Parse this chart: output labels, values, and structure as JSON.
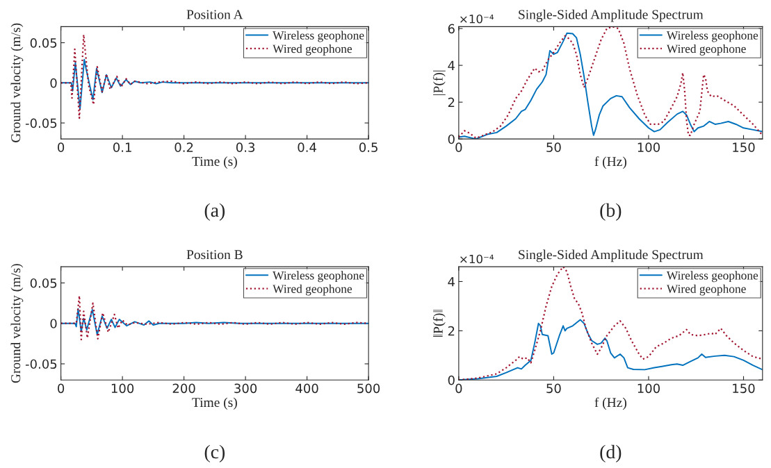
{
  "chart_data": [
    {
      "type": "line",
      "title": "Position A",
      "xlabel": "Time (s)",
      "ylabel": "Ground velocity (m/s)",
      "xlim": [
        0,
        0.5
      ],
      "xticks": [
        0,
        0.1,
        0.2,
        0.3,
        0.4,
        0.5
      ],
      "ylim": [
        -0.07,
        0.07
      ],
      "yticks": [
        -0.05,
        0,
        0.05
      ],
      "grid": false,
      "legend": "top right",
      "annotations": [
        "(a)"
      ],
      "series": [
        {
          "name": "Wireless geophone",
          "color": "#0072bd",
          "line_style": "solid",
          "x": [
            0,
            0.017,
            0.019,
            0.0235,
            0.031,
            0.038,
            0.041,
            0.052,
            0.058,
            0.067,
            0.074,
            0.082,
            0.09,
            0.097,
            0.106,
            0.113,
            0.12,
            0.13,
            0.145,
            0.155,
            0.165,
            0.18,
            0.2,
            0.25,
            0.3,
            0.35,
            0.4,
            0.45,
            0.5
          ],
          "values": [
            0,
            0,
            -0.01,
            0.025,
            -0.033,
            0.029,
            0.017,
            -0.021,
            0.018,
            -0.012,
            0.01,
            -0.006,
            0.006,
            -0.004,
            0.004,
            -0.002,
            0.002,
            0,
            0.001,
            -0.001,
            0.001,
            0,
            0,
            0,
            0,
            0,
            0,
            0,
            0
          ]
        },
        {
          "name": "Wired geophone",
          "color": "#a2142f",
          "line_style": "dotted",
          "x": [
            0,
            0.016,
            0.018,
            0.0225,
            0.03,
            0.037,
            0.045,
            0.053,
            0.059,
            0.067,
            0.074,
            0.08,
            0.091,
            0.098,
            0.106,
            0.113,
            0.12,
            0.14,
            0.16,
            0.18,
            0.2,
            0.22,
            0.24,
            0.26,
            0.28,
            0.3,
            0.32,
            0.34,
            0.36,
            0.38,
            0.4,
            0.42,
            0.44,
            0.46,
            0.48,
            0.5
          ],
          "values": [
            0,
            0,
            -0.019,
            0.042,
            -0.044,
            0.06,
            -0.003,
            -0.027,
            0.02,
            -0.011,
            0.011,
            -0.008,
            0.008,
            -0.005,
            0.005,
            -0.002,
            0.002,
            -0.001,
            0.001,
            0.002,
            -0.001,
            0.001,
            -0.001,
            0.001,
            -0.001,
            0.001,
            -0.001,
            0.001,
            -0.001,
            0.001,
            -0.001,
            0.001,
            -0.001,
            0.001,
            -0.001,
            0
          ]
        }
      ]
    },
    {
      "type": "line",
      "title": "Single-Sided Amplitude Spectrum",
      "xlabel": "f (Hz)",
      "ylabel": "|P(f)|",
      "xlim": [
        0,
        160
      ],
      "xticks": [
        0,
        50,
        100,
        150
      ],
      "ylim": [
        0,
        6.1
      ],
      "yticks": [
        0,
        2,
        4,
        6
      ],
      "grid": false,
      "legend": "top right",
      "annotations": [
        "×10⁻⁴",
        "(b)"
      ],
      "series": [
        {
          "name": "Wireless geophone",
          "color": "#0072bd",
          "line_style": "solid",
          "x": [
            0,
            3,
            9,
            15,
            20,
            25,
            30,
            33,
            35,
            38,
            41,
            44,
            46,
            48,
            50,
            52,
            55,
            57,
            60,
            62,
            64,
            66,
            68,
            70,
            71,
            72,
            74,
            76,
            80,
            83,
            86,
            90,
            95,
            100,
            103,
            106,
            110,
            115,
            118,
            120,
            122,
            124,
            126,
            129,
            132,
            135,
            138,
            142,
            146,
            150,
            155,
            160
          ],
          "values": [
            0.1,
            0.15,
            0.0,
            0.25,
            0.35,
            0.7,
            1.1,
            1.5,
            1.6,
            2.1,
            2.7,
            3.1,
            3.5,
            4.8,
            4.6,
            4.7,
            5.3,
            5.75,
            5.72,
            5.5,
            4.6,
            3.4,
            2.0,
            0.7,
            0.2,
            0.5,
            1.3,
            1.8,
            2.2,
            2.35,
            2.3,
            1.7,
            1.1,
            0.6,
            0.4,
            0.5,
            0.9,
            1.35,
            1.5,
            1.3,
            0.8,
            0.4,
            0.6,
            0.7,
            0.95,
            0.8,
            0.85,
            0.95,
            0.8,
            0.6,
            0.5,
            0.4
          ]
        },
        {
          "name": "Wired geophone",
          "color": "#a2142f",
          "line_style": "dotted",
          "x": [
            0,
            3,
            6,
            9,
            13,
            18,
            22,
            26,
            30,
            33,
            36,
            40,
            42,
            44,
            47,
            50,
            53,
            56,
            58,
            60,
            62,
            64,
            66,
            68,
            72,
            75,
            78,
            81,
            84,
            87,
            90,
            94,
            98,
            101,
            105,
            108,
            112,
            115,
            117,
            118,
            119,
            120,
            121,
            122,
            124,
            127,
            129,
            130,
            131,
            133,
            136,
            140,
            145,
            150,
            155,
            160
          ],
          "values": [
            0.1,
            0.45,
            0.3,
            0.05,
            0.2,
            0.4,
            0.7,
            1.3,
            2.2,
            2.6,
            3.2,
            3.85,
            3.65,
            3.7,
            4.3,
            4.7,
            5.2,
            5.6,
            5.45,
            5.2,
            4.6,
            3.5,
            2.8,
            3.3,
            4.5,
            5.4,
            6.0,
            6.1,
            6.0,
            5.2,
            3.8,
            2.4,
            1.3,
            0.8,
            0.8,
            0.95,
            1.7,
            2.3,
            3.0,
            3.6,
            2.6,
            1.0,
            0.2,
            0.2,
            0.8,
            1.5,
            3.5,
            3.3,
            2.6,
            2.3,
            2.35,
            2.1,
            1.8,
            1.3,
            0.8,
            0.2
          ]
        }
      ]
    },
    {
      "type": "line",
      "title": "Position B",
      "xlabel": "Time (s)",
      "ylabel": "Ground velocity (m/s)",
      "xlim": [
        0,
        500
      ],
      "xticks": [
        0,
        100,
        200,
        300,
        400,
        500
      ],
      "ylim": [
        -0.07,
        0.07
      ],
      "yticks": [
        -0.05,
        0,
        0.05
      ],
      "grid": false,
      "legend": "top right",
      "annotations": [
        "(c)"
      ],
      "series": [
        {
          "name": "Wireless geophone",
          "color": "#0072bd",
          "line_style": "solid",
          "x": [
            0,
            23,
            25,
            28,
            33,
            37,
            42,
            51,
            59,
            67,
            75,
            82,
            88,
            95,
            107,
            120,
            135,
            143,
            150,
            160,
            200,
            220,
            240,
            265,
            290,
            350,
            400,
            450,
            500
          ],
          "values": [
            0,
            0,
            -0.004,
            0.018,
            -0.01,
            0.006,
            -0.008,
            0.017,
            -0.014,
            0.009,
            -0.006,
            0.005,
            -0.005,
            0.005,
            -0.003,
            0.002,
            -0.002,
            0.003,
            -0.002,
            0,
            0,
            0.001,
            0,
            0.001,
            0,
            0,
            0,
            0,
            0
          ]
        },
        {
          "name": "Wired geophone",
          "color": "#a2142f",
          "line_style": "dotted",
          "x": [
            0,
            25,
            30,
            33,
            37,
            43,
            52,
            60,
            68,
            77,
            87,
            93,
            100,
            108,
            120,
            140,
            160,
            180,
            200,
            220,
            240,
            260,
            280,
            300,
            320,
            340,
            360,
            380,
            400,
            420,
            440,
            460,
            480,
            500
          ],
          "values": [
            0,
            0,
            0.034,
            -0.02,
            0.015,
            -0.018,
            0.025,
            -0.019,
            0.013,
            -0.011,
            0.011,
            -0.006,
            0.004,
            -0.002,
            0.001,
            -0.001,
            0.001,
            -0.001,
            0.001,
            -0.001,
            0.001,
            -0.001,
            0.001,
            -0.001,
            0.001,
            -0.001,
            0.001,
            -0.001,
            0.001,
            -0.001,
            0.001,
            -0.001,
            0.001,
            0
          ]
        }
      ]
    },
    {
      "type": "line",
      "title": "Single-Sided Amplitude Spectrum",
      "xlabel": "f (Hz)",
      "ylabel": "‖P(f)‖",
      "xlim": [
        0,
        160
      ],
      "xticks": [
        0,
        50,
        100,
        150
      ],
      "ylim": [
        0,
        4.6
      ],
      "yticks": [
        0,
        2,
        4
      ],
      "grid": false,
      "legend": "top right",
      "annotations": [
        "×10⁻⁴",
        "(d)"
      ],
      "series": [
        {
          "name": "Wireless geophone",
          "color": "#0072bd",
          "line_style": "solid",
          "x": [
            0,
            10,
            20,
            25,
            28,
            31,
            33,
            35,
            38,
            40,
            42,
            43,
            44,
            47,
            49,
            50,
            53,
            55,
            56,
            57,
            60,
            64,
            66,
            68,
            70,
            73,
            75,
            77,
            78,
            80,
            82,
            85,
            87,
            89,
            92,
            98,
            103,
            107,
            112,
            115,
            118,
            122,
            126,
            128,
            130,
            135,
            140,
            145,
            150,
            155,
            160
          ],
          "values": [
            0.0,
            0.05,
            0.15,
            0.3,
            0.4,
            0.5,
            0.45,
            0.6,
            0.8,
            1.5,
            2.3,
            2.2,
            1.85,
            1.8,
            1.05,
            1.1,
            1.8,
            2.2,
            2.0,
            2.1,
            2.2,
            2.45,
            2.3,
            1.9,
            1.6,
            1.45,
            1.5,
            1.7,
            1.6,
            1.1,
            0.9,
            1.05,
            0.9,
            0.5,
            0.43,
            0.42,
            0.5,
            0.55,
            0.62,
            0.65,
            0.6,
            0.75,
            0.9,
            1.05,
            0.92,
            0.97,
            1.0,
            0.95,
            0.8,
            0.6,
            0.42
          ]
        },
        {
          "name": "Wired geophone",
          "color": "#a2142f",
          "line_style": "dotted",
          "x": [
            0,
            10,
            20,
            25,
            30,
            32,
            34,
            36,
            38,
            40,
            43,
            46,
            49,
            52,
            55,
            57,
            59,
            61,
            63,
            65,
            67,
            70,
            73,
            75,
            78,
            82,
            85,
            88,
            91,
            95,
            97,
            100,
            104,
            108,
            112,
            116,
            120,
            122,
            126,
            130,
            133,
            135,
            138,
            141,
            145,
            150,
            155,
            160
          ],
          "values": [
            0,
            0.08,
            0.25,
            0.5,
            0.8,
            0.95,
            0.85,
            0.9,
            0.7,
            1.2,
            2.0,
            3.0,
            3.8,
            4.3,
            4.6,
            4.4,
            3.8,
            3.3,
            3.1,
            2.7,
            2.1,
            1.5,
            1.05,
            1.3,
            1.8,
            2.2,
            2.4,
            2.1,
            1.6,
            1.05,
            0.85,
            0.95,
            1.35,
            1.5,
            1.7,
            1.8,
            2.05,
            1.85,
            1.8,
            1.85,
            1.9,
            1.85,
            2.1,
            1.8,
            1.5,
            1.2,
            0.95,
            0.85
          ]
        }
      ]
    }
  ]
}
